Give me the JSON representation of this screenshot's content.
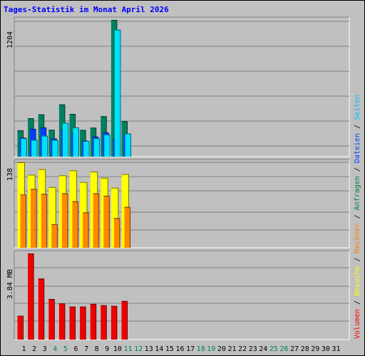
{
  "title": "Tages-Statistik im Monat April 2026",
  "chart_data": {
    "type": "bar",
    "categories": [
      "1",
      "2",
      "3",
      "4",
      "5",
      "6",
      "7",
      "8",
      "9",
      "10",
      "11",
      "12",
      "13",
      "14",
      "15",
      "16",
      "17",
      "18",
      "19",
      "20",
      "21",
      "22",
      "23",
      "24",
      "25",
      "26",
      "27",
      "28",
      "29",
      "30",
      "31"
    ],
    "weekend_days": [
      "4",
      "5",
      "11",
      "12",
      "18",
      "19",
      "25",
      "26"
    ],
    "panels": [
      {
        "label": "1204",
        "ylim": [
          0,
          1204
        ],
        "legend": [
          {
            "name": "Anfragen",
            "color": "#008040"
          },
          {
            "name": "Dateien",
            "color": "#0040ff"
          },
          {
            "name": "Seiten",
            "color": "#00c0ff"
          }
        ],
        "series": [
          {
            "name": "Anfragen",
            "color": "#008060",
            "values": [
              232,
              338,
              372,
              236,
              460,
              376,
              235,
              255,
              356,
              1204,
              312
            ]
          },
          {
            "name": "Dateien",
            "color": "#0040ff",
            "values": [
              167,
              244,
              257,
              159,
              238,
              207,
              140,
              176,
              213,
              154,
              195
            ]
          },
          {
            "name": "Seiten",
            "color": "#00e0ff",
            "values": [
              162,
              148,
              184,
              147,
              297,
              257,
              138,
              162,
              196,
              1118,
              204
            ]
          }
        ]
      },
      {
        "label": "138",
        "ylim": [
          0,
          138
        ],
        "legend": [
          {
            "name": "Besuche",
            "color": "#ffff00"
          },
          {
            "name": "Rechner",
            "color": "#ff8000"
          }
        ],
        "series": [
          {
            "name": "Besuche",
            "color": "#ffff00",
            "values": [
              138,
              118,
              127,
              98,
              117,
              125,
              106,
              123,
              113,
              97,
              119
            ]
          },
          {
            "name": "Rechner",
            "color": "#ff8800",
            "values": [
              86,
              95,
              87,
              38,
              88,
              75,
              57,
              88,
              84,
              48,
              66
            ]
          }
        ]
      },
      {
        "label": "3.84 MB",
        "ylim": [
          0,
          3.84
        ],
        "legend": [
          {
            "name": "Volumen",
            "color": "#ff0000"
          }
        ],
        "series": [
          {
            "name": "Volumen",
            "color": "#ee0000",
            "values": [
              1.06,
              3.84,
              2.72,
              1.81,
              1.61,
              1.47,
              1.47,
              1.59,
              1.53,
              1.5,
              1.72
            ]
          }
        ]
      }
    ],
    "separator": "/"
  }
}
